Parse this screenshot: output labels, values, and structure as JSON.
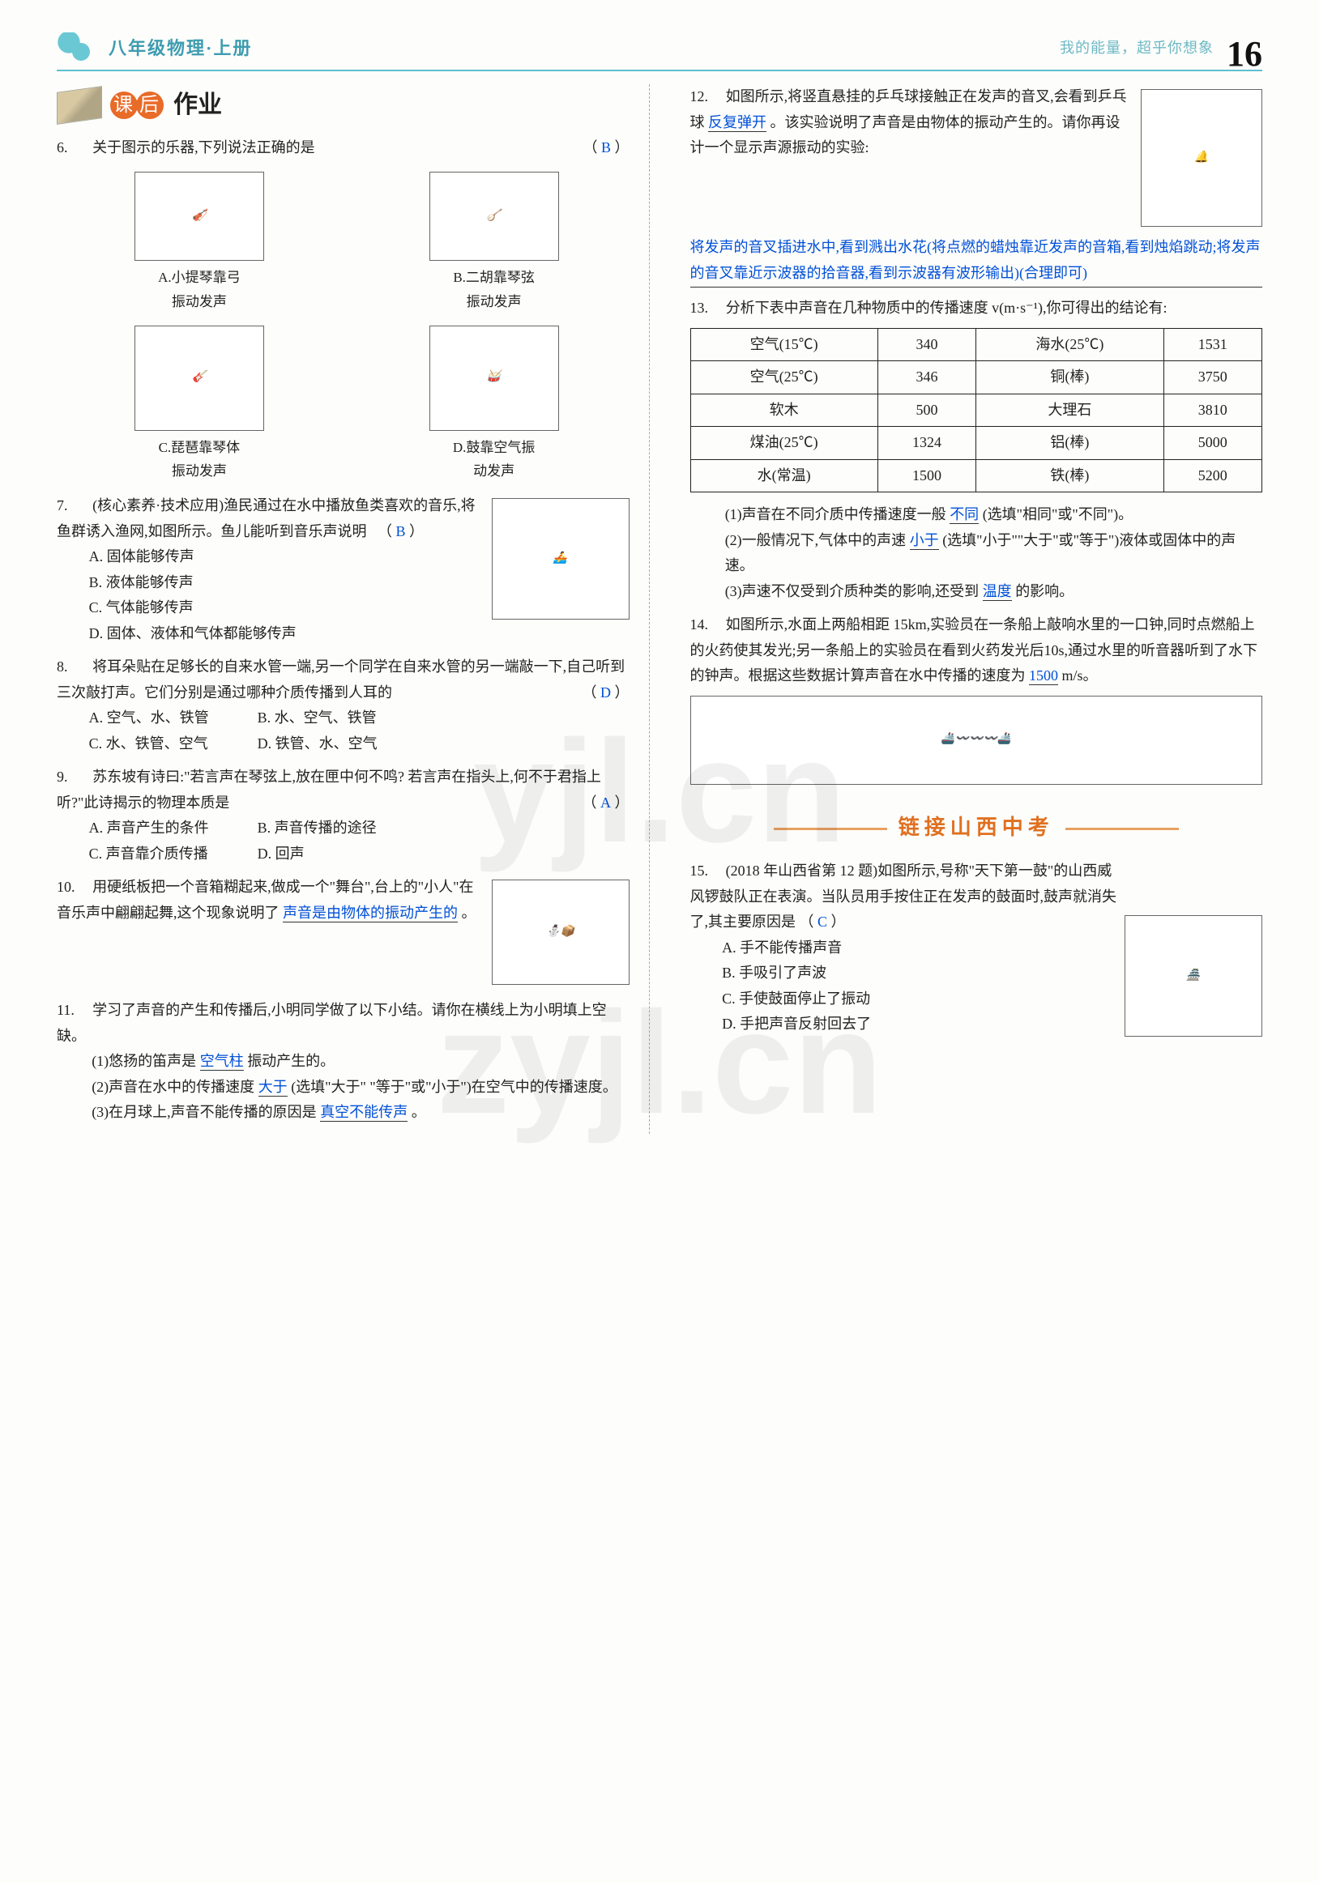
{
  "header": {
    "grade": "八年级物理·上册",
    "slogan": "我的能量，超乎你想象",
    "pageNumber": "16"
  },
  "section1": {
    "circle1": "课",
    "circle2": "后",
    "rest": "作业"
  },
  "q6": {
    "num": "6.",
    "text": "关于图示的乐器,下列说法正确的是",
    "answer": "B",
    "optA": "A.小提琴靠弓\n振动发声",
    "optB": "B.二胡靠琴弦\n振动发声",
    "optC": "C.琵琶靠琴体\n振动发声",
    "optD": "D.鼓靠空气振\n动发声"
  },
  "q7": {
    "num": "7.",
    "prefix": "(核心素养·技术应用)渔民通过在水中播放鱼类喜欢的音乐,将鱼群诱入渔网,如图所示。鱼儿能听到音乐声说明",
    "answer": "B",
    "A": "A. 固体能够传声",
    "B": "B. 液体能够传声",
    "C": "C. 气体能够传声",
    "D": "D. 固体、液体和气体都能够传声"
  },
  "q8": {
    "num": "8.",
    "text": "将耳朵贴在足够长的自来水管一端,另一个同学在自来水管的另一端敲一下,自己听到三次敲打声。它们分别是通过哪种介质传播到人耳的",
    "answer": "D",
    "A": "A. 空气、水、铁管",
    "B": "B. 水、空气、铁管",
    "C": "C. 水、铁管、空气",
    "D": "D. 铁管、水、空气"
  },
  "q9": {
    "num": "9.",
    "text": "苏东坡有诗曰:\"若言声在琴弦上,放在匣中何不鸣? 若言声在指头上,何不于君指上听?\"此诗揭示的物理本质是",
    "answer": "A",
    "A": "A. 声音产生的条件",
    "B": "B. 声音传播的途径",
    "C": "C. 声音靠介质传播",
    "D": "D. 回声"
  },
  "q10": {
    "num": "10.",
    "text_a": "用硬纸板把一个音箱糊起来,做成一个\"舞台\",台上的\"小人\"在音乐声中翩翩起舞,这个现象说明了",
    "fill": "声音是由物体的振动产生的",
    "period": "。"
  },
  "q11": {
    "num": "11.",
    "text": "学习了声音的产生和传播后,小明同学做了以下小结。请你在横线上为小明填上空缺。",
    "s1a": "(1)悠扬的笛声是",
    "s1fill": "空气柱",
    "s1b": "振动产生的。",
    "s2a": "(2)声音在水中的传播速度",
    "s2fill": "大于",
    "s2b": "(选填\"大于\" \"等于\"或\"小于\")在空气中的传播速度。",
    "s3a": "(3)在月球上,声音不能传播的原因是",
    "s3fill": "真空不能传声",
    "s3b": "。"
  },
  "q12": {
    "num": "12.",
    "part1": "如图所示,将竖直悬挂的乒乓球接触正在发声的音叉,会看到乒乓球",
    "fill1": "反复弹开",
    "part2": "。该实验说明了声音是由物体的振动产生的。请你再设计一个显示声源振动的实验:",
    "fill2": "将发声的音叉插进水中,看到溅出水花(将点燃的蜡烛靠近发声的音箱,看到烛焰跳动;将发声的音叉靠近示波器的拾音器,看到示波器有波形输出)(合理即可)"
  },
  "q13": {
    "num": "13.",
    "intro": "分析下表中声音在几种物质中的传播速度 v(m·s⁻¹),你可得出的结论有:",
    "table": {
      "rows": [
        [
          "空气(15℃)",
          "340",
          "海水(25℃)",
          "1531"
        ],
        [
          "空气(25℃)",
          "346",
          "铜(棒)",
          "3750"
        ],
        [
          "软木",
          "500",
          "大理石",
          "3810"
        ],
        [
          "煤油(25℃)",
          "1324",
          "铝(棒)",
          "5000"
        ],
        [
          "水(常温)",
          "1500",
          "铁(棒)",
          "5200"
        ]
      ]
    },
    "s1a": "(1)声音在不同介质中传播速度一般",
    "s1fill": "不同",
    "s1b": "(选填\"相同\"或\"不同\")。",
    "s2a": "(2)一般情况下,气体中的声速",
    "s2fill": "小于",
    "s2b": "(选填\"小于\"\"大于\"或\"等于\")液体或固体中的声速。",
    "s3a": "(3)声速不仅受到介质种类的影响,还受到",
    "s3fill": "温度",
    "s3b": "的影响。"
  },
  "q14": {
    "num": "14.",
    "text": "如图所示,水面上两船相距 15km,实验员在一条船上敲响水里的一口钟,同时点燃船上的火药使其发光;另一条船上的实验员在看到火药发光后10s,通过水里的听音器听到了水下的钟声。根据这些数据计算声音在水中传播的速度为",
    "fill": "1500",
    "unit": "m/s。"
  },
  "section2": "链接山西中考",
  "q15": {
    "num": "15.",
    "text": "(2018 年山西省第 12 题)如图所示,号称\"天下第一鼓\"的山西威风锣鼓队正在表演。当队员用手按住正在发声的鼓面时,鼓声就消失了,其主要原因是",
    "answer": "C",
    "A": "A. 手不能传播声音",
    "B": "B. 手吸引了声波",
    "C": "C. 手使鼓面停止了振动",
    "D": "D. 手把声音反射回去了"
  },
  "watermark1": "yjl.cn",
  "watermark2": "zyjl.cn"
}
